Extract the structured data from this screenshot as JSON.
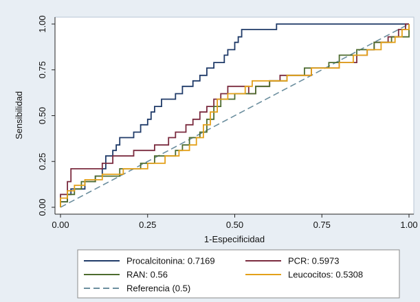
{
  "chart_data": {
    "type": "line",
    "xlabel": "1-Especificidad",
    "ylabel": "Sensibilidad",
    "xlim": [
      0,
      1
    ],
    "ylim": [
      0,
      1
    ],
    "xticks": [
      "0.00",
      "0.25",
      "0.50",
      "0.75",
      "1.00"
    ],
    "yticks": [
      "0.00",
      "0.25",
      "0.50",
      "0.75",
      "1.00"
    ],
    "grid": false,
    "legend_position": "bottom",
    "series": [
      {
        "name": "Procalcitonina: 0.7169",
        "color": "#1f3a68",
        "points": [
          [
            0,
            0
          ],
          [
            0,
            0.03
          ],
          [
            0.02,
            0.03
          ],
          [
            0.02,
            0.07
          ],
          [
            0.03,
            0.07
          ],
          [
            0.03,
            0.1
          ],
          [
            0.07,
            0.1
          ],
          [
            0.07,
            0.14
          ],
          [
            0.1,
            0.14
          ],
          [
            0.1,
            0.17
          ],
          [
            0.12,
            0.17
          ],
          [
            0.12,
            0.21
          ],
          [
            0.13,
            0.21
          ],
          [
            0.13,
            0.28
          ],
          [
            0.15,
            0.28
          ],
          [
            0.15,
            0.31
          ],
          [
            0.16,
            0.31
          ],
          [
            0.16,
            0.34
          ],
          [
            0.17,
            0.34
          ],
          [
            0.17,
            0.38
          ],
          [
            0.19,
            0.38
          ],
          [
            0.21,
            0.38
          ],
          [
            0.21,
            0.41
          ],
          [
            0.23,
            0.41
          ],
          [
            0.23,
            0.45
          ],
          [
            0.25,
            0.45
          ],
          [
            0.25,
            0.48
          ],
          [
            0.26,
            0.48
          ],
          [
            0.26,
            0.52
          ],
          [
            0.27,
            0.52
          ],
          [
            0.27,
            0.55
          ],
          [
            0.29,
            0.55
          ],
          [
            0.29,
            0.59
          ],
          [
            0.31,
            0.59
          ],
          [
            0.33,
            0.59
          ],
          [
            0.33,
            0.62
          ],
          [
            0.35,
            0.62
          ],
          [
            0.35,
            0.66
          ],
          [
            0.38,
            0.66
          ],
          [
            0.38,
            0.69
          ],
          [
            0.4,
            0.69
          ],
          [
            0.4,
            0.72
          ],
          [
            0.42,
            0.72
          ],
          [
            0.42,
            0.76
          ],
          [
            0.44,
            0.76
          ],
          [
            0.44,
            0.79
          ],
          [
            0.47,
            0.79
          ],
          [
            0.47,
            0.83
          ],
          [
            0.48,
            0.83
          ],
          [
            0.48,
            0.86
          ],
          [
            0.5,
            0.86
          ],
          [
            0.5,
            0.9
          ],
          [
            0.51,
            0.9
          ],
          [
            0.51,
            0.93
          ],
          [
            0.52,
            0.93
          ],
          [
            0.52,
            0.97
          ],
          [
            0.58,
            0.97
          ],
          [
            0.62,
            0.97
          ],
          [
            0.62,
            1.0
          ],
          [
            1.0,
            1.0
          ]
        ]
      },
      {
        "name": "PCR: 0.5973",
        "color": "#7a2a3e",
        "points": [
          [
            0,
            0
          ],
          [
            0,
            0.07
          ],
          [
            0.02,
            0.07
          ],
          [
            0.02,
            0.14
          ],
          [
            0.03,
            0.14
          ],
          [
            0.03,
            0.21
          ],
          [
            0.08,
            0.21
          ],
          [
            0.12,
            0.21
          ],
          [
            0.12,
            0.24
          ],
          [
            0.15,
            0.24
          ],
          [
            0.15,
            0.28
          ],
          [
            0.21,
            0.28
          ],
          [
            0.21,
            0.31
          ],
          [
            0.27,
            0.31
          ],
          [
            0.27,
            0.34
          ],
          [
            0.31,
            0.34
          ],
          [
            0.31,
            0.38
          ],
          [
            0.33,
            0.38
          ],
          [
            0.33,
            0.41
          ],
          [
            0.36,
            0.41
          ],
          [
            0.36,
            0.45
          ],
          [
            0.38,
            0.45
          ],
          [
            0.38,
            0.48
          ],
          [
            0.4,
            0.48
          ],
          [
            0.4,
            0.52
          ],
          [
            0.42,
            0.52
          ],
          [
            0.42,
            0.55
          ],
          [
            0.44,
            0.55
          ],
          [
            0.44,
            0.59
          ],
          [
            0.46,
            0.59
          ],
          [
            0.46,
            0.62
          ],
          [
            0.48,
            0.62
          ],
          [
            0.48,
            0.66
          ],
          [
            0.54,
            0.66
          ],
          [
            0.54,
            0.62
          ],
          [
            0.56,
            0.62
          ],
          [
            0.56,
            0.66
          ],
          [
            0.6,
            0.66
          ],
          [
            0.6,
            0.69
          ],
          [
            0.63,
            0.69
          ],
          [
            0.63,
            0.72
          ],
          [
            0.7,
            0.72
          ],
          [
            0.72,
            0.72
          ],
          [
            0.72,
            0.76
          ],
          [
            0.8,
            0.76
          ],
          [
            0.8,
            0.79
          ],
          [
            0.85,
            0.79
          ],
          [
            0.85,
            0.83
          ],
          [
            0.88,
            0.83
          ],
          [
            0.88,
            0.86
          ],
          [
            0.9,
            0.86
          ],
          [
            0.9,
            0.9
          ],
          [
            0.94,
            0.9
          ],
          [
            0.94,
            0.93
          ],
          [
            0.97,
            0.93
          ],
          [
            0.97,
            0.97
          ],
          [
            0.99,
            0.97
          ],
          [
            0.99,
            1.0
          ],
          [
            1.0,
            1.0
          ]
        ]
      },
      {
        "name": "RAN: 0.56",
        "color": "#4d6b2e",
        "points": [
          [
            0,
            0
          ],
          [
            0,
            0.03
          ],
          [
            0.02,
            0.03
          ],
          [
            0.02,
            0.07
          ],
          [
            0.04,
            0.07
          ],
          [
            0.04,
            0.1
          ],
          [
            0.06,
            0.1
          ],
          [
            0.06,
            0.14
          ],
          [
            0.1,
            0.14
          ],
          [
            0.1,
            0.17
          ],
          [
            0.17,
            0.17
          ],
          [
            0.17,
            0.21
          ],
          [
            0.23,
            0.21
          ],
          [
            0.23,
            0.24
          ],
          [
            0.27,
            0.24
          ],
          [
            0.27,
            0.28
          ],
          [
            0.33,
            0.28
          ],
          [
            0.33,
            0.31
          ],
          [
            0.35,
            0.31
          ],
          [
            0.35,
            0.34
          ],
          [
            0.37,
            0.34
          ],
          [
            0.37,
            0.38
          ],
          [
            0.4,
            0.38
          ],
          [
            0.4,
            0.41
          ],
          [
            0.42,
            0.41
          ],
          [
            0.42,
            0.48
          ],
          [
            0.44,
            0.48
          ],
          [
            0.44,
            0.55
          ],
          [
            0.46,
            0.55
          ],
          [
            0.46,
            0.59
          ],
          [
            0.5,
            0.59
          ],
          [
            0.5,
            0.62
          ],
          [
            0.52,
            0.62
          ],
          [
            0.56,
            0.62
          ],
          [
            0.56,
            0.66
          ],
          [
            0.6,
            0.66
          ],
          [
            0.6,
            0.69
          ],
          [
            0.65,
            0.69
          ],
          [
            0.65,
            0.72
          ],
          [
            0.7,
            0.72
          ],
          [
            0.7,
            0.76
          ],
          [
            0.77,
            0.76
          ],
          [
            0.77,
            0.79
          ],
          [
            0.8,
            0.79
          ],
          [
            0.8,
            0.83
          ],
          [
            0.85,
            0.83
          ],
          [
            0.85,
            0.86
          ],
          [
            0.9,
            0.86
          ],
          [
            0.9,
            0.9
          ],
          [
            0.95,
            0.9
          ],
          [
            0.95,
            0.93
          ],
          [
            1.0,
            0.93
          ],
          [
            1.0,
            1.0
          ]
        ]
      },
      {
        "name": "Leucocitos: 0.5308",
        "color": "#e3a019",
        "points": [
          [
            0,
            0
          ],
          [
            0,
            0.05
          ],
          [
            0.02,
            0.05
          ],
          [
            0.02,
            0.09
          ],
          [
            0.04,
            0.09
          ],
          [
            0.04,
            0.12
          ],
          [
            0.07,
            0.12
          ],
          [
            0.07,
            0.15
          ],
          [
            0.12,
            0.15
          ],
          [
            0.12,
            0.18
          ],
          [
            0.18,
            0.18
          ],
          [
            0.18,
            0.21
          ],
          [
            0.25,
            0.21
          ],
          [
            0.25,
            0.24
          ],
          [
            0.3,
            0.24
          ],
          [
            0.3,
            0.28
          ],
          [
            0.34,
            0.28
          ],
          [
            0.34,
            0.31
          ],
          [
            0.37,
            0.31
          ],
          [
            0.37,
            0.34
          ],
          [
            0.39,
            0.34
          ],
          [
            0.39,
            0.38
          ],
          [
            0.41,
            0.38
          ],
          [
            0.41,
            0.45
          ],
          [
            0.43,
            0.45
          ],
          [
            0.43,
            0.52
          ],
          [
            0.45,
            0.52
          ],
          [
            0.45,
            0.59
          ],
          [
            0.48,
            0.59
          ],
          [
            0.48,
            0.62
          ],
          [
            0.5,
            0.62
          ],
          [
            0.53,
            0.62
          ],
          [
            0.53,
            0.66
          ],
          [
            0.55,
            0.66
          ],
          [
            0.55,
            0.69
          ],
          [
            0.6,
            0.69
          ],
          [
            0.65,
            0.69
          ],
          [
            0.65,
            0.72
          ],
          [
            0.72,
            0.72
          ],
          [
            0.72,
            0.76
          ],
          [
            0.8,
            0.76
          ],
          [
            0.8,
            0.79
          ],
          [
            0.84,
            0.79
          ],
          [
            0.84,
            0.83
          ],
          [
            0.88,
            0.83
          ],
          [
            0.88,
            0.86
          ],
          [
            0.92,
            0.86
          ],
          [
            0.92,
            0.9
          ],
          [
            0.96,
            0.9
          ],
          [
            0.96,
            0.93
          ],
          [
            0.98,
            0.93
          ],
          [
            0.98,
            0.97
          ],
          [
            1.0,
            0.97
          ],
          [
            1.0,
            1.0
          ]
        ]
      },
      {
        "name": "Referencia (0.5)",
        "color": "#6b8e9e",
        "dashed": true,
        "points": [
          [
            0,
            0
          ],
          [
            1,
            1
          ]
        ]
      }
    ]
  }
}
